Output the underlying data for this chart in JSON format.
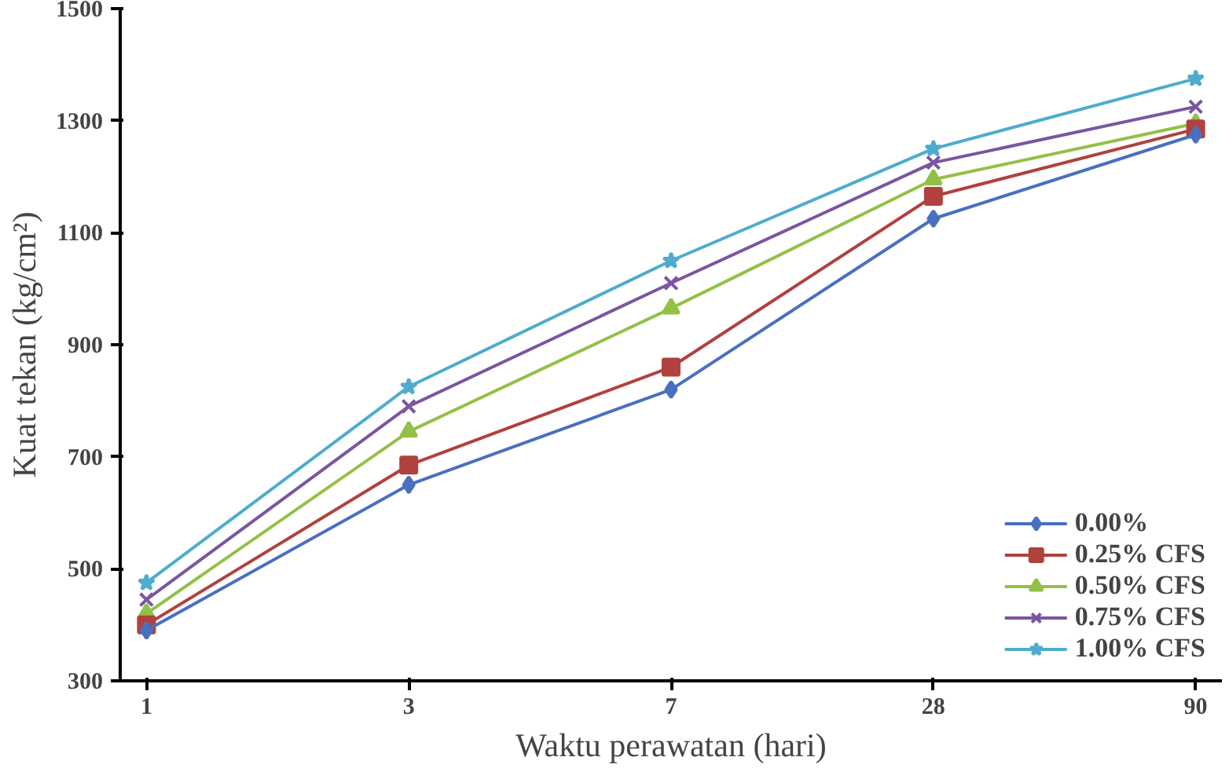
{
  "chart_data": {
    "type": "line",
    "xlabel": "Waktu perawatan (hari)",
    "ylabel": "Kuat tekan (kg/cm²)",
    "categories": [
      "1",
      "3",
      "7",
      "28",
      "90"
    ],
    "ylim": [
      300,
      1500
    ],
    "yticks": [
      300,
      500,
      700,
      900,
      1100,
      1300,
      1500
    ],
    "grid": false,
    "legend": "bottom right",
    "line_style": "solid",
    "series": [
      {
        "name": "0.00%",
        "color": "#4a6fc0",
        "marker": "diamond",
        "values": [
          390,
          650,
          820,
          1125,
          1275
        ]
      },
      {
        "name": "0.25% CFS",
        "color": "#b0413e",
        "marker": "square",
        "values": [
          400,
          685,
          860,
          1165,
          1285
        ]
      },
      {
        "name": "0.50% CFS",
        "color": "#93c047",
        "marker": "triangle",
        "values": [
          420,
          745,
          965,
          1195,
          1295
        ]
      },
      {
        "name": "0.75% CFS",
        "color": "#7b55a0",
        "marker": "cross",
        "values": [
          445,
          790,
          1010,
          1225,
          1325
        ]
      },
      {
        "name": "1.00% CFS",
        "color": "#4eaccc",
        "marker": "star",
        "values": [
          475,
          825,
          1050,
          1250,
          1375
        ]
      }
    ]
  }
}
